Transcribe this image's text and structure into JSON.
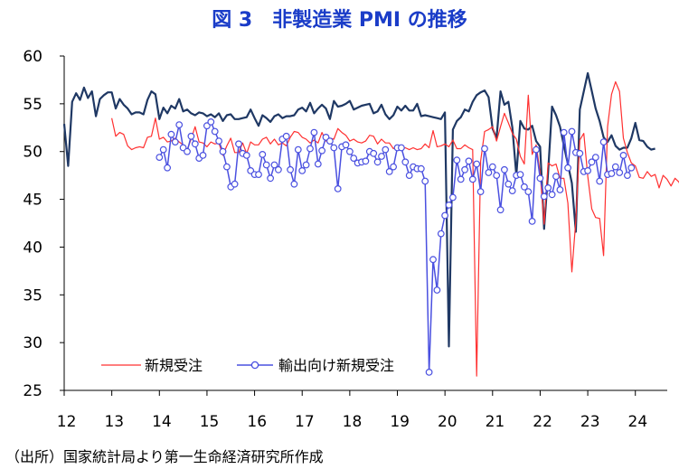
{
  "colors": {
    "title": "#1a3cc8",
    "pmi_line": "#1f3864",
    "new_orders": "#ff3030",
    "export_orders": "#4a50e0",
    "marker_fill": "#ffffff"
  },
  "source": "（出所）国家統計局より第一生命経済研究所作成",
  "chart_data": {
    "type": "line",
    "title": "図 3　非製造業 PMI の推移",
    "xlabel": "",
    "ylabel": "",
    "ylim": [
      25,
      60
    ],
    "yticks": [
      "25",
      "30",
      "35",
      "40",
      "45",
      "50",
      "55",
      "60"
    ],
    "xlim": [
      2012.0,
      2024.67
    ],
    "xticks": [
      "12",
      "13",
      "14",
      "15",
      "16",
      "17",
      "18",
      "19",
      "20",
      "21",
      "22",
      "23",
      "24"
    ],
    "grid": false,
    "legend_position": "bottom-left",
    "x_start": 2012.0,
    "x_step": 0.08333,
    "series": [
      {
        "name": "",
        "key": "pmi",
        "values": [
          52.9,
          48.5,
          55.2,
          56.1,
          55.4,
          56.7,
          55.6,
          56.3,
          53.7,
          55.5,
          55.9,
          56.2,
          56.2,
          54.5,
          55.5,
          54.9,
          54.5,
          53.9,
          54.1,
          54.1,
          53.9,
          55.4,
          56.3,
          56.0,
          53.4,
          54.6,
          54.0,
          54.8,
          54.5,
          55.5,
          54.2,
          54.4,
          54.0,
          53.8,
          54.1,
          54.0,
          53.7,
          53.9,
          53.6,
          54.0,
          53.2,
          53.8,
          53.9,
          53.4,
          53.4,
          53.5,
          53.6,
          54.4,
          53.5,
          52.7,
          53.8,
          53.5,
          53.1,
          53.7,
          53.9,
          53.5,
          53.7,
          53.7,
          53.8,
          54.4,
          54.6,
          54.2,
          55.1,
          54.0,
          54.5,
          54.9,
          54.5,
          53.4,
          55.3,
          54.7,
          54.8,
          55.0,
          55.3,
          54.4,
          54.6,
          54.8,
          54.9,
          55.0,
          54.0,
          54.2,
          54.9,
          53.9,
          53.4,
          53.8,
          54.7,
          54.3,
          54.8,
          54.3,
          54.3,
          55.0,
          53.7,
          53.8,
          53.7,
          53.6,
          53.5,
          53.4,
          54.1,
          29.6,
          52.3,
          53.2,
          53.6,
          54.4,
          54.2,
          55.2,
          55.9,
          56.2,
          56.4,
          55.7,
          52.4,
          51.4,
          56.3,
          54.9,
          55.2,
          52.5,
          47.5,
          53.2,
          52.4,
          52.3,
          52.7,
          51.1,
          50.5,
          41.9,
          47.8,
          54.7,
          53.8,
          52.6,
          50.6,
          48.7,
          46.7,
          41.6,
          54.4,
          56.3,
          58.2,
          56.4,
          54.5,
          53.2,
          51.5,
          51.0,
          51.7,
          50.6,
          50.2,
          50.4,
          50.4,
          51.4,
          53.0,
          51.2,
          51.1,
          50.5,
          50.2,
          50.3
        ],
        "color": "#1f3864"
      },
      {
        "name": "新規受注",
        "key": "new_orders",
        "x_start": 2013.0,
        "values": [
          53.5,
          51.6,
          52.0,
          51.8,
          50.6,
          50.2,
          50.4,
          50.5,
          50.4,
          51.5,
          51.6,
          53.5,
          51.3,
          51.5,
          51.0,
          51.1,
          51.4,
          51.0,
          50.7,
          50.2,
          51.3,
          52.6,
          51.0,
          50.9,
          50.5,
          51.0,
          50.8,
          50.9,
          49.6,
          50.6,
          51.4,
          49.9,
          49.9,
          50.9,
          49.8,
          51.0,
          50.7,
          50.7,
          51.3,
          51.5,
          50.8,
          51.3,
          50.7,
          50.9,
          50.6,
          51.5,
          52.1,
          52.0,
          51.5,
          51.3,
          50.9,
          51.2,
          50.9,
          52.0,
          51.1,
          51.4,
          51.3,
          52.4,
          52.0,
          51.7,
          51.1,
          51.3,
          51.0,
          50.9,
          51.1,
          51.7,
          51.6,
          50.8,
          51.3,
          50.9,
          50.9,
          50.3,
          50.6,
          50.2,
          50.4,
          50.2,
          50.4,
          50.2,
          50.3,
          50.8,
          50.4,
          52.2,
          50.5,
          50.6,
          50.8,
          50.5,
          51.2,
          50.3,
          50.3,
          50.7,
          50.4,
          50.2,
          26.5,
          49.0,
          52.1,
          52.3,
          52.6,
          51.1,
          52.6,
          54.0,
          53.0,
          51.9,
          51.3,
          49.5,
          48.7,
          55.9,
          49.7,
          50.7,
          47.8,
          42.4,
          48.8,
          48.5,
          48.7,
          47.2,
          47.2,
          44.6,
          37.4,
          42.8,
          51.2,
          51.9,
          47.4,
          44.0,
          43.1,
          43.0,
          39.1,
          52.6,
          56.0,
          57.3,
          56.3,
          51.4,
          49.9,
          48.8,
          48.5,
          47.3,
          47.2,
          47.9,
          47.4,
          47.6,
          46.2,
          47.5,
          47.1,
          46.4,
          47.2,
          46.8,
          45.7,
          46.3
        ],
        "color": "#ff3030"
      },
      {
        "name": "輸出向け新規受注",
        "key": "export_orders",
        "x_start": 2014.0,
        "values": [
          49.4,
          50.2,
          48.3,
          51.8,
          51.0,
          52.8,
          50.4,
          50.0,
          51.6,
          50.8,
          49.3,
          49.6,
          52.7,
          53.1,
          52.1,
          51.1,
          50.0,
          48.4,
          46.3,
          46.6,
          50.8,
          49.8,
          49.6,
          48.0,
          47.6,
          47.6,
          49.7,
          48.6,
          47.2,
          48.6,
          48.1,
          51.3,
          51.6,
          48.1,
          46.6,
          50.2,
          48.0,
          48.6,
          50.3,
          52.0,
          48.7,
          50.1,
          51.5,
          51.1,
          50.4,
          46.1,
          50.5,
          50.7,
          50.0,
          49.3,
          48.8,
          48.9,
          49.0,
          50.0,
          49.8,
          48.9,
          49.5,
          50.2,
          47.9,
          48.4,
          50.4,
          50.4,
          48.9,
          47.5,
          48.4,
          48.2,
          48.2,
          46.9,
          26.9,
          38.7,
          35.5,
          41.4,
          43.3,
          44.4,
          45.2,
          49.1,
          47.1,
          48.1,
          49.0,
          47.1,
          48.7,
          45.8,
          50.3,
          47.8,
          48.4,
          47.5,
          43.9,
          48.1,
          46.6,
          45.9,
          47.5,
          47.6,
          46.3,
          45.8,
          42.7,
          50.2,
          47.2,
          45.3,
          46.2,
          45.5,
          47.4,
          46.0,
          52.0,
          48.3,
          52.1,
          49.9,
          49.8,
          47.9,
          48.0,
          48.9,
          49.4,
          46.9,
          51.0,
          47.6,
          47.7,
          48.4,
          47.8,
          49.6,
          47.5,
          48.3
        ],
        "color": "#4a50e0"
      }
    ]
  }
}
